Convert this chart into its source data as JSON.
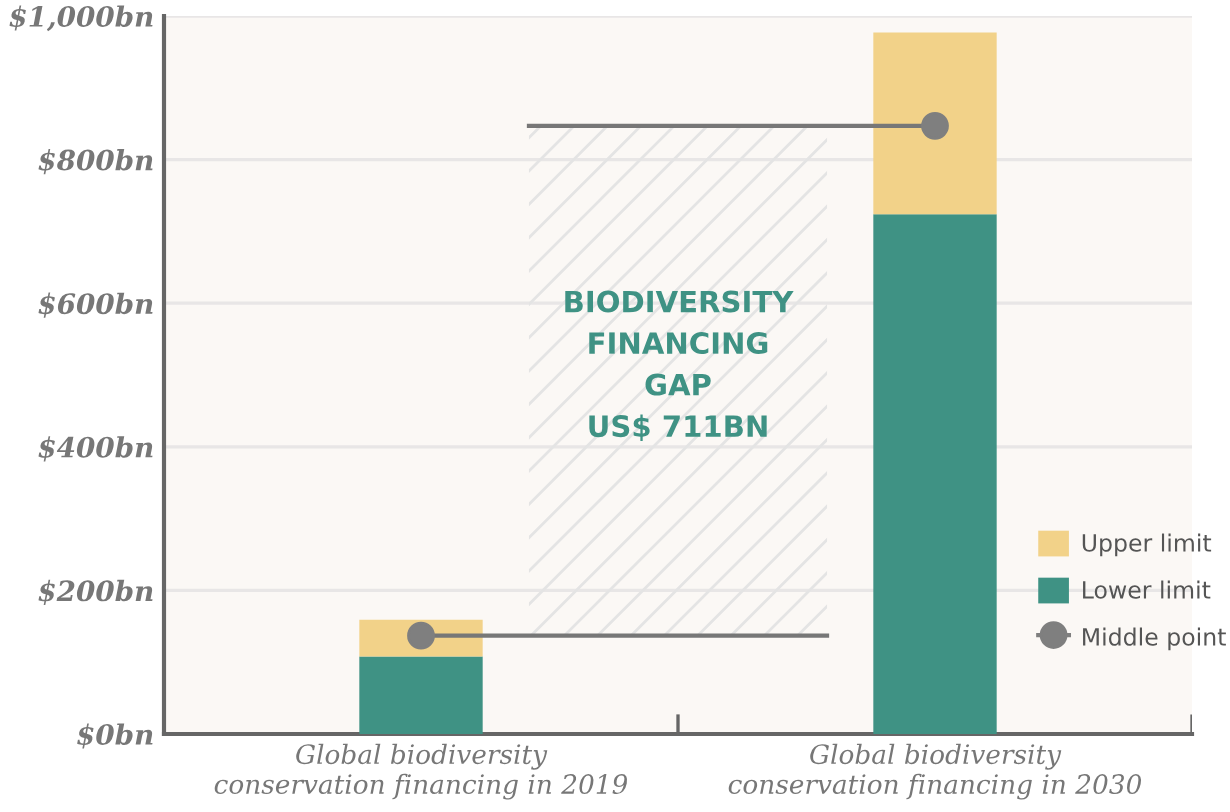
{
  "chart_data": {
    "type": "bar",
    "stacked": true,
    "categories": [
      "Global biodiversity\nconservation financing in 2019",
      "Global biodiversity\nconservation financing in 2030"
    ],
    "series": [
      {
        "name": "Lower limit",
        "color": "#3f9284",
        "values": [
          108,
          724
        ]
      },
      {
        "name": "Upper limit",
        "color": "#f2d289",
        "values": [
          51,
          253
        ]
      },
      {
        "name": "Middle point",
        "type": "scatter",
        "color": "#7f7f7f",
        "x": [
          "Global biodiversity\nconservation financing in 2019",
          "Global biodiversity\nconservation financing in 2030"
        ],
        "values": [
          137,
          847
        ]
      }
    ],
    "ylim": [
      0,
      1000
    ],
    "yticks": [
      {
        "value": 0,
        "label": "$0bn"
      },
      {
        "value": 200,
        "label": "$200bn"
      },
      {
        "value": 400,
        "label": "$400bn"
      },
      {
        "value": 600,
        "label": "$600bn"
      },
      {
        "value": 800,
        "label": "$800bn"
      },
      {
        "value": 1000,
        "label": "$1,000bn"
      }
    ],
    "bands": [
      {
        "axis": "y",
        "from": 137,
        "to": 847,
        "label": "BIODIVERSITY\nFINANCING\nGAP\nUS$ 711BN",
        "color": "#3f9284"
      }
    ],
    "ref_lines": [
      {
        "axis": "y",
        "value": 137,
        "color": "#777777"
      },
      {
        "axis": "y",
        "value": 847,
        "color": "#777777"
      }
    ],
    "grid": "y",
    "legend": "bottom right",
    "marker": "circle"
  }
}
